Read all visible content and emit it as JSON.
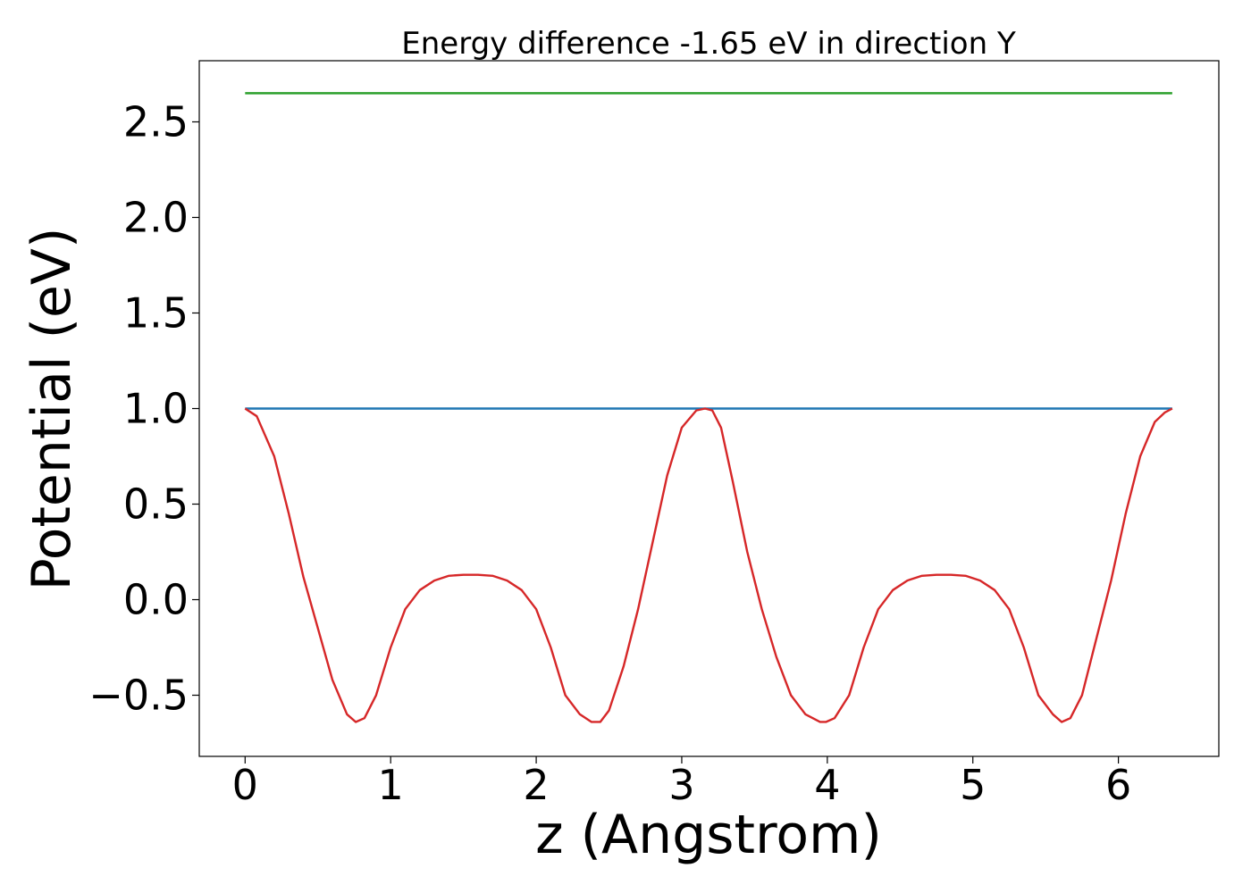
{
  "chart_data": {
    "type": "line",
    "title": "Energy difference -1.65 eV in direction Y",
    "xlabel": "z (Angstrom)",
    "ylabel": "Potential (eV)",
    "xlim": [
      -0.315,
      6.69
    ],
    "ylim": [
      -0.82,
      2.82
    ],
    "grid": false,
    "legend": "none",
    "x_ticks": [
      0,
      1,
      2,
      3,
      4,
      5,
      6
    ],
    "x_tick_labels": [
      "0",
      "1",
      "2",
      "3",
      "4",
      "5",
      "6"
    ],
    "y_ticks": [
      -0.5,
      0.0,
      0.5,
      1.0,
      1.5,
      2.0,
      2.5
    ],
    "y_tick_labels": [
      "−0.5",
      "0.0",
      "0.5",
      "1.0",
      "1.5",
      "2.0",
      "2.5"
    ],
    "series": [
      {
        "color": "#2ca02c",
        "x": [
          0,
          6.37
        ],
        "y": [
          2.65,
          2.65
        ]
      },
      {
        "color": "#1f77b4",
        "x": [
          0,
          6.37
        ],
        "y": [
          1.0,
          1.0
        ]
      },
      {
        "color": "#d62728",
        "x": [
          0,
          0.08,
          0.2,
          0.3,
          0.4,
          0.5,
          0.6,
          0.7,
          0.76,
          0.82,
          0.9,
          1.0,
          1.1,
          1.2,
          1.3,
          1.4,
          1.5,
          1.6,
          1.7,
          1.8,
          1.9,
          2.0,
          2.1,
          2.2,
          2.3,
          2.38,
          2.44,
          2.5,
          2.6,
          2.7,
          2.8,
          2.9,
          3.0,
          3.1,
          3.16,
          3.21,
          3.27,
          3.35,
          3.45,
          3.55,
          3.65,
          3.75,
          3.85,
          3.95,
          3.99,
          4.05,
          4.15,
          4.25,
          4.35,
          4.45,
          4.55,
          4.65,
          4.75,
          4.85,
          4.95,
          5.05,
          5.15,
          5.25,
          5.35,
          5.45,
          5.55,
          5.61,
          5.67,
          5.75,
          5.85,
          5.95,
          6.05,
          6.15,
          6.25,
          6.32,
          6.37
        ],
        "y": [
          1.0,
          0.96,
          0.75,
          0.45,
          0.12,
          -0.15,
          -0.42,
          -0.6,
          -0.64,
          -0.62,
          -0.5,
          -0.25,
          -0.05,
          0.05,
          0.1,
          0.125,
          0.13,
          0.13,
          0.125,
          0.1,
          0.05,
          -0.05,
          -0.25,
          -0.5,
          -0.6,
          -0.64,
          -0.64,
          -0.58,
          -0.35,
          -0.05,
          0.3,
          0.65,
          0.9,
          0.99,
          1.0,
          0.99,
          0.9,
          0.62,
          0.25,
          -0.05,
          -0.3,
          -0.5,
          -0.6,
          -0.64,
          -0.64,
          -0.62,
          -0.5,
          -0.25,
          -0.05,
          0.05,
          0.1,
          0.125,
          0.13,
          0.13,
          0.125,
          0.1,
          0.05,
          -0.05,
          -0.25,
          -0.5,
          -0.6,
          -0.64,
          -0.62,
          -0.5,
          -0.2,
          0.1,
          0.45,
          0.75,
          0.93,
          0.98,
          1.0
        ]
      }
    ]
  }
}
